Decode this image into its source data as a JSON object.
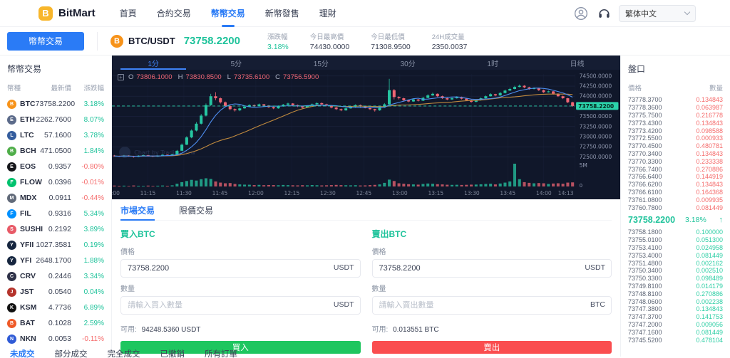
{
  "header": {
    "brand": "BitMart",
    "logo_letter": "B",
    "nav": [
      {
        "label": "首頁"
      },
      {
        "label": "合約交易"
      },
      {
        "label": "幣幣交易",
        "active": true
      },
      {
        "label": "新幣發售"
      },
      {
        "label": "理財"
      }
    ],
    "language": "繁体中文"
  },
  "subheader": {
    "market_button": "幣幣交易",
    "pair": "BTC/USDT",
    "pair_icon_letter": "B",
    "price": "73758.2200",
    "stats": [
      {
        "label": "漲跌幅",
        "value": "3.18%"
      },
      {
        "label": "今日最高價",
        "value": "74430.0000"
      },
      {
        "label": "今日最低價",
        "value": "71308.9500"
      },
      {
        "label": "24H成交量",
        "value": "2350.0037"
      }
    ]
  },
  "coin_panel": {
    "title": "幣幣交易",
    "columns": [
      "幣種",
      "最新價",
      "漲跌幅"
    ],
    "coins": [
      {
        "symbol": "BTC",
        "price": "73758.2200",
        "change": "3.18%",
        "up": true,
        "color": "#f7931a"
      },
      {
        "symbol": "ETH",
        "price": "2262.7600",
        "change": "8.07%",
        "up": true,
        "color": "#5c6b8a"
      },
      {
        "symbol": "LTC",
        "price": "57.1600",
        "change": "3.78%",
        "up": true,
        "color": "#345d9d"
      },
      {
        "symbol": "BCH",
        "price": "471.0500",
        "change": "1.84%",
        "up": true,
        "color": "#4fae49"
      },
      {
        "symbol": "EOS",
        "price": "0.9357",
        "change": "-0.80%",
        "up": false,
        "color": "#15161a"
      },
      {
        "symbol": "FLOW",
        "price": "0.0396",
        "change": "-0.01%",
        "up": false,
        "color": "#00c26e"
      },
      {
        "symbol": "MDX",
        "price": "0.0911",
        "change": "-0.44%",
        "up": false,
        "color": "#616a79"
      },
      {
        "symbol": "FIL",
        "price": "0.9316",
        "change": "5.34%",
        "up": true,
        "color": "#0090ff"
      },
      {
        "symbol": "SUSHI",
        "price": "0.2192",
        "change": "3.89%",
        "up": true,
        "color": "#e85a67"
      },
      {
        "symbol": "YFII",
        "price": "1027.3581",
        "change": "0.19%",
        "up": true,
        "color": "#16263f"
      },
      {
        "symbol": "YFI",
        "price": "2648.1700",
        "change": "1.88%",
        "up": true,
        "color": "#16263f"
      },
      {
        "symbol": "CRV",
        "price": "0.2446",
        "change": "3.34%",
        "up": true,
        "color": "#2e3148"
      },
      {
        "symbol": "JST",
        "price": "0.0540",
        "change": "0.04%",
        "up": true,
        "color": "#b5342c"
      },
      {
        "symbol": "KSM",
        "price": "4.7736",
        "change": "6.89%",
        "up": true,
        "color": "#111111"
      },
      {
        "symbol": "BAT",
        "price": "0.1028",
        "change": "2.59%",
        "up": true,
        "color": "#ef5a28"
      },
      {
        "symbol": "NKN",
        "price": "0.0053",
        "change": "-0.11%",
        "up": false,
        "color": "#2f5bd6"
      }
    ]
  },
  "chart": {
    "timeframes": [
      {
        "label": "1分",
        "active": true
      },
      {
        "label": "5分"
      },
      {
        "label": "15分"
      },
      {
        "label": "30分"
      },
      {
        "label": "1时"
      },
      {
        "label": "日线"
      }
    ],
    "ohlc_labels": [
      "O",
      "H",
      "L",
      "C"
    ],
    "ohlc_values": [
      "73806.1000",
      "73830.8500",
      "73735.6100",
      "73756.5900"
    ],
    "watermark": "Chart by TradingView"
  },
  "chart_data": {
    "type": "candlestick",
    "pair": "BTC/USDT",
    "interval_minutes": 2,
    "start_time": "11:00",
    "end_time": "14:13",
    "x_labels": [
      "11:00",
      "11:15",
      "11:30",
      "11:45",
      "12:00",
      "12:15",
      "12:30",
      "12:45",
      "13:00",
      "13:15",
      "13:30",
      "13:45",
      "14:00",
      "14:13"
    ],
    "x_label_minutes": [
      0,
      15,
      30,
      45,
      60,
      75,
      90,
      105,
      120,
      135,
      150,
      165,
      180,
      193
    ],
    "total_minutes": 193,
    "ylim": [
      72400,
      74550
    ],
    "y_ticks": [
      72500,
      72750,
      73000,
      73250,
      73500,
      73750,
      74000,
      74250,
      74500
    ],
    "hidden_tick": 73750,
    "last_price": 73758.22,
    "last_price_label": "73758.2200",
    "day_high": 74430.0,
    "day_low": 71308.95,
    "volume_ylim": [
      0,
      5
    ],
    "volume_axis_labels": [
      "5M",
      "0"
    ],
    "ma_periods": {
      "fast": 7,
      "slow": 25
    },
    "up_color": "#26c6a2",
    "down_color": "#ef6674",
    "ma_fast_color": "#4e8ef0",
    "ma_slow_color": "#c08a3e",
    "last_line_color": "#2bd3ab",
    "grid_color": "#1c2540",
    "axis_text_color": "#8e96ad",
    "candles": [
      [
        72530,
        72545,
        72505,
        72520,
        0.2
      ],
      [
        72520,
        72530,
        72495,
        72510,
        0.15
      ],
      [
        72510,
        72545,
        72500,
        72530,
        0.18
      ],
      [
        72530,
        72540,
        72500,
        72515,
        0.12
      ],
      [
        72515,
        72525,
        72480,
        72500,
        0.22
      ],
      [
        72500,
        72540,
        72490,
        72525,
        0.16
      ],
      [
        72525,
        72555,
        72515,
        72540,
        0.14
      ],
      [
        72540,
        72550,
        72505,
        72520,
        0.19
      ],
      [
        72520,
        72530,
        72490,
        72505,
        0.13
      ],
      [
        72505,
        72545,
        72495,
        72530,
        0.17
      ],
      [
        72530,
        72565,
        72520,
        72550,
        0.21
      ],
      [
        72550,
        72560,
        72525,
        72540,
        0.15
      ],
      [
        72540,
        72575,
        72530,
        72560,
        0.25
      ],
      [
        72560,
        72670,
        72550,
        72650,
        0.6
      ],
      [
        72650,
        72830,
        72640,
        72800,
        0.95
      ],
      [
        72800,
        73010,
        72790,
        72980,
        1.2
      ],
      [
        72980,
        73180,
        72960,
        73150,
        1.45
      ],
      [
        73150,
        73360,
        73130,
        73320,
        1.3
      ],
      [
        73320,
        73560,
        73300,
        73520,
        1.6
      ],
      [
        73520,
        73820,
        73500,
        73780,
        1.8
      ],
      [
        73780,
        74060,
        73760,
        74000,
        1.65
      ],
      [
        74000,
        74100,
        73900,
        73950,
        1.1
      ],
      [
        73950,
        73970,
        73820,
        73850,
        0.85
      ],
      [
        73850,
        73870,
        73730,
        73760,
        0.7
      ],
      [
        73760,
        73780,
        73650,
        73680,
        0.75
      ],
      [
        73680,
        73700,
        73620,
        73650,
        0.55
      ],
      [
        73650,
        73720,
        73630,
        73700,
        0.45
      ],
      [
        73700,
        73760,
        73690,
        73740,
        0.4
      ],
      [
        73740,
        73800,
        73730,
        73780,
        0.38
      ],
      [
        73780,
        73795,
        73740,
        73760,
        0.3
      ],
      [
        73760,
        73820,
        73750,
        73800,
        0.35
      ],
      [
        73800,
        73810,
        73750,
        73770,
        0.28
      ],
      [
        73770,
        73780,
        73710,
        73730,
        0.32
      ],
      [
        73730,
        73745,
        73680,
        73700,
        0.3
      ],
      [
        73700,
        73770,
        73690,
        73750,
        0.27
      ],
      [
        73750,
        73810,
        73740,
        73790,
        0.33
      ],
      [
        73790,
        73840,
        73780,
        73820,
        0.29
      ],
      [
        73820,
        73830,
        73760,
        73780,
        0.26
      ],
      [
        73780,
        73795,
        73730,
        73750,
        0.24
      ],
      [
        73750,
        73765,
        73700,
        73720,
        0.28
      ],
      [
        73720,
        73780,
        73710,
        73760,
        0.25
      ],
      [
        73760,
        73820,
        73750,
        73800,
        0.31
      ],
      [
        73800,
        73850,
        73790,
        73830,
        0.27
      ],
      [
        73830,
        73845,
        73780,
        73800,
        0.23
      ],
      [
        73800,
        73815,
        73750,
        73770,
        0.26
      ],
      [
        73770,
        73780,
        73700,
        73720,
        0.3
      ],
      [
        73720,
        73735,
        73660,
        73680,
        0.34
      ],
      [
        73680,
        73695,
        73630,
        73650,
        0.29
      ],
      [
        73650,
        73720,
        73640,
        73700,
        0.27
      ],
      [
        73700,
        73760,
        73690,
        73740,
        0.25
      ],
      [
        73740,
        73800,
        73730,
        73780,
        0.28
      ],
      [
        73780,
        73795,
        73730,
        73750,
        0.22
      ],
      [
        73750,
        73765,
        73700,
        73720,
        0.24
      ],
      [
        73720,
        73735,
        73660,
        73680,
        0.3
      ],
      [
        73680,
        73690,
        73620,
        73650,
        0.35
      ],
      [
        73650,
        73740,
        73640,
        73720,
        0.45
      ],
      [
        73720,
        73830,
        73710,
        73800,
        0.8
      ],
      [
        73800,
        74430,
        73780,
        74150,
        1.5
      ],
      [
        74150,
        74180,
        73920,
        73980,
        1.2
      ],
      [
        73980,
        74000,
        73920,
        73950,
        0.7
      ],
      [
        73950,
        73965,
        73870,
        73900,
        0.6
      ],
      [
        73900,
        73915,
        73850,
        73870,
        0.5
      ],
      [
        73870,
        73945,
        73860,
        73920,
        0.45
      ],
      [
        73920,
        73935,
        73870,
        73890,
        0.4
      ],
      [
        73890,
        73985,
        73880,
        73960,
        0.55
      ],
      [
        73960,
        74050,
        73950,
        74020,
        0.65
      ],
      [
        74020,
        74090,
        74010,
        74060,
        0.6
      ],
      [
        74060,
        74070,
        73980,
        74000,
        0.5
      ],
      [
        74000,
        74015,
        73930,
        73950,
        0.45
      ],
      [
        73950,
        73965,
        73900,
        73920,
        0.38
      ],
      [
        73920,
        73970,
        73910,
        73950,
        0.35
      ],
      [
        73950,
        74000,
        73940,
        73980,
        0.37
      ],
      [
        73980,
        73990,
        73920,
        73940,
        0.33
      ],
      [
        73940,
        73950,
        73880,
        73900,
        0.36
      ],
      [
        73900,
        73915,
        73840,
        73860,
        0.4
      ],
      [
        73860,
        73920,
        73850,
        73900,
        0.42
      ],
      [
        73900,
        73970,
        73890,
        73950,
        0.48
      ],
      [
        73950,
        74020,
        73940,
        74000,
        0.55
      ],
      [
        74000,
        74075,
        73990,
        74050,
        0.6
      ],
      [
        74050,
        74060,
        74000,
        74020,
        0.45
      ],
      [
        74020,
        74105,
        74010,
        74080,
        0.65
      ],
      [
        74080,
        74165,
        74070,
        74140,
        0.85
      ],
      [
        74140,
        74210,
        74130,
        74180,
        1.1
      ],
      [
        74180,
        74260,
        74170,
        74230,
        5.0
      ],
      [
        74230,
        74290,
        74220,
        74260,
        1.6
      ],
      [
        74260,
        74275,
        74200,
        74220,
        0.95
      ],
      [
        74220,
        74235,
        74160,
        74180,
        0.8
      ],
      [
        74180,
        74220,
        74170,
        74200,
        0.7
      ],
      [
        74200,
        74210,
        74130,
        74150,
        0.75
      ],
      [
        74150,
        74165,
        74080,
        74100,
        0.7
      ],
      [
        74100,
        74140,
        74090,
        74120,
        0.55
      ],
      [
        74120,
        74130,
        74040,
        74060,
        0.65
      ],
      [
        74060,
        74075,
        73980,
        74000,
        0.7
      ],
      [
        74000,
        74015,
        73930,
        73950,
        0.6
      ],
      [
        73950,
        73960,
        73830,
        73850,
        0.85
      ],
      [
        73850,
        73865,
        73740,
        73758,
        0.9
      ]
    ]
  },
  "trade_panel": {
    "tabs": [
      {
        "label": "市場交易",
        "active": true
      },
      {
        "label": "限價交易"
      }
    ],
    "buy": {
      "title": "買入BTC",
      "price_label": "價格",
      "price_value": "73758.2200",
      "price_unit": "USDT",
      "amount_label": "數量",
      "amount_placeholder": "請輸入買入數量",
      "amount_unit": "USDT",
      "available_label": "可用:",
      "available_value": "94248.5360 USDT",
      "button": "買入"
    },
    "sell": {
      "title": "賣出BTC",
      "price_label": "價格",
      "price_value": "73758.2200",
      "price_unit": "USDT",
      "amount_label": "數量",
      "amount_placeholder": "請輸入賣出數量",
      "amount_unit": "BTC",
      "available_label": "可用:",
      "available_value": "0.013551 BTC",
      "button": "賣出"
    }
  },
  "order_book": {
    "title": "盤口",
    "columns": [
      "價格",
      "數量"
    ],
    "asks": [
      {
        "price": "73778.3700",
        "amount": "0.134843"
      },
      {
        "price": "73778.3600",
        "amount": "0.063987"
      },
      {
        "price": "73775.7500",
        "amount": "0.216778"
      },
      {
        "price": "73773.4300",
        "amount": "0.134843"
      },
      {
        "price": "73773.4200",
        "amount": "0.098588"
      },
      {
        "price": "73772.5500",
        "amount": "0.000933"
      },
      {
        "price": "73770.4500",
        "amount": "0.480781"
      },
      {
        "price": "73770.3400",
        "amount": "0.134843"
      },
      {
        "price": "73770.3300",
        "amount": "0.233338"
      },
      {
        "price": "73766.7400",
        "amount": "0.270886"
      },
      {
        "price": "73766.6400",
        "amount": "0.144919"
      },
      {
        "price": "73766.6200",
        "amount": "0.134843"
      },
      {
        "price": "73766.6100",
        "amount": "0.164368"
      },
      {
        "price": "73761.0800",
        "amount": "0.009935"
      },
      {
        "price": "73760.7800",
        "amount": "0.081449"
      }
    ],
    "current": {
      "price": "73758.2200",
      "change": "3.18%",
      "arrow": "↑"
    },
    "bids": [
      {
        "price": "73758.1800",
        "amount": "0.100000"
      },
      {
        "price": "73755.0100",
        "amount": "0.051300"
      },
      {
        "price": "73753.4100",
        "amount": "0.024958"
      },
      {
        "price": "73753.4000",
        "amount": "0.081449"
      },
      {
        "price": "73751.4800",
        "amount": "0.002162"
      },
      {
        "price": "73750.3400",
        "amount": "0.002510"
      },
      {
        "price": "73750.3300",
        "amount": "0.098489"
      },
      {
        "price": "73749.8100",
        "amount": "0.014179"
      },
      {
        "price": "73748.8100",
        "amount": "0.270886"
      },
      {
        "price": "73748.0600",
        "amount": "0.002238"
      },
      {
        "price": "73747.3800",
        "amount": "0.134843"
      },
      {
        "price": "73747.3700",
        "amount": "0.141753"
      },
      {
        "price": "73747.2000",
        "amount": "0.009056"
      },
      {
        "price": "73747.1600",
        "amount": "0.081449"
      },
      {
        "price": "73745.5200",
        "amount": "0.478104"
      }
    ]
  },
  "bottom_tabs": [
    {
      "label": "未成交",
      "active": true
    },
    {
      "label": "部分成交"
    },
    {
      "label": "完全成交"
    },
    {
      "label": "已撤銷"
    },
    {
      "label": "所有訂單"
    }
  ],
  "colors": {
    "accent_blue": "#2a7bf6",
    "green": "#1fc39b",
    "red": "#f56c6c",
    "buy_button": "#1ec65f",
    "sell_button": "#fa4d4f",
    "brand_gold": "#f8b62b",
    "btc_orange": "#f7931a",
    "chart_bg": "#10172a"
  }
}
